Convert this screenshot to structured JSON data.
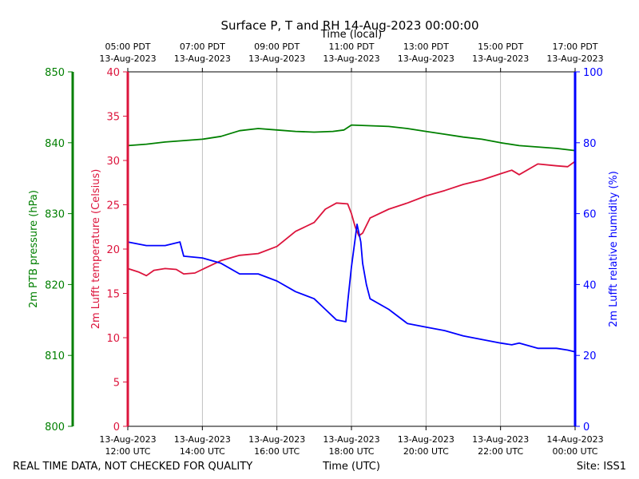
{
  "chart_data": {
    "type": "line",
    "title": "Surface P, T and RH 14-Aug-2023 00:00:00",
    "top_axis_label": "Time (local)",
    "xlabel": "Time (UTC)",
    "footer_left": "REAL TIME DATA, NOT CHECKED FOR QUALITY",
    "footer_right": "Site: ISS1",
    "xlim": [
      "2023-08-13 12:00 UTC",
      "2023-08-14 00:00 UTC"
    ],
    "x_ticks_utc": [
      {
        "date": "13-Aug-2023",
        "time": "12:00 UTC"
      },
      {
        "date": "13-Aug-2023",
        "time": "14:00 UTC"
      },
      {
        "date": "13-Aug-2023",
        "time": "16:00 UTC"
      },
      {
        "date": "13-Aug-2023",
        "time": "18:00 UTC"
      },
      {
        "date": "13-Aug-2023",
        "time": "20:00 UTC"
      },
      {
        "date": "13-Aug-2023",
        "time": "22:00 UTC"
      },
      {
        "date": "14-Aug-2023",
        "time": "00:00 UTC"
      }
    ],
    "x_ticks_local": [
      {
        "time": "05:00 PDT",
        "date": "13-Aug-2023"
      },
      {
        "time": "07:00 PDT",
        "date": "13-Aug-2023"
      },
      {
        "time": "09:00 PDT",
        "date": "13-Aug-2023"
      },
      {
        "time": "11:00 PDT",
        "date": "13-Aug-2023"
      },
      {
        "time": "13:00 PDT",
        "date": "13-Aug-2023"
      },
      {
        "time": "15:00 PDT",
        "date": "13-Aug-2023"
      },
      {
        "time": "17:00 PDT",
        "date": "13-Aug-2023"
      }
    ],
    "grid": "vertical",
    "axes": {
      "pressure": {
        "label": "2m PTB pressure (hPa)",
        "ylim": [
          800,
          850
        ],
        "ticks": [
          "800",
          "810",
          "820",
          "830",
          "840",
          "850"
        ],
        "color": "#007f00"
      },
      "temperature": {
        "label": "2m Lufft temperature (Celsius)",
        "ylim": [
          0,
          40
        ],
        "ticks": [
          "0",
          "5",
          "10",
          "15",
          "20",
          "25",
          "30",
          "35",
          "40"
        ],
        "color": "#dc143c"
      },
      "humidity": {
        "label": "2m Lufft relative humidity (%)",
        "ylim": [
          0,
          100
        ],
        "ticks": [
          "0",
          "20",
          "40",
          "60",
          "80",
          "100"
        ],
        "color": "#0000ff"
      }
    },
    "series": [
      {
        "axis": "pressure",
        "color": "#008000",
        "x_hours_utc": [
          12.0,
          12.5,
          13.0,
          13.5,
          14.0,
          14.5,
          15.0,
          15.5,
          16.0,
          16.5,
          17.0,
          17.5,
          17.8,
          18.0,
          18.5,
          19.0,
          19.5,
          20.0,
          20.5,
          21.0,
          21.5,
          22.0,
          22.5,
          23.0,
          23.5,
          24.0
        ],
        "values": [
          839.6,
          839.8,
          840.1,
          840.3,
          840.5,
          840.9,
          841.7,
          842.0,
          841.8,
          841.6,
          841.5,
          841.6,
          841.8,
          842.5,
          842.4,
          842.3,
          842.0,
          841.6,
          841.2,
          840.8,
          840.5,
          840.0,
          839.6,
          839.4,
          839.2,
          838.9
        ]
      },
      {
        "axis": "temperature",
        "color": "#dc143c",
        "x_hours_utc": [
          12.0,
          12.3,
          12.5,
          12.7,
          13.0,
          13.3,
          13.5,
          13.8,
          14.0,
          14.5,
          15.0,
          15.5,
          16.0,
          16.5,
          17.0,
          17.3,
          17.6,
          17.9,
          18.0,
          18.1,
          18.2,
          18.3,
          18.5,
          19.0,
          19.5,
          20.0,
          20.5,
          21.0,
          21.5,
          22.0,
          22.3,
          22.5,
          23.0,
          23.5,
          23.8,
          24.0
        ],
        "values": [
          17.8,
          17.4,
          17.0,
          17.6,
          17.8,
          17.7,
          17.2,
          17.3,
          17.7,
          18.7,
          19.3,
          19.5,
          20.3,
          22.0,
          23.0,
          24.5,
          25.2,
          25.1,
          24.0,
          22.5,
          21.5,
          21.8,
          23.5,
          24.5,
          25.2,
          26.0,
          26.6,
          27.3,
          27.8,
          28.5,
          28.9,
          28.4,
          29.6,
          29.4,
          29.3,
          29.9
        ]
      },
      {
        "axis": "humidity",
        "color": "#0000ff",
        "x_hours_utc": [
          12.0,
          12.5,
          13.0,
          13.4,
          13.5,
          14.0,
          14.5,
          15.0,
          15.5,
          16.0,
          16.5,
          17.0,
          17.3,
          17.6,
          17.85,
          17.9,
          18.0,
          18.1,
          18.15,
          18.25,
          18.3,
          18.4,
          18.5,
          19.0,
          19.5,
          20.0,
          20.5,
          21.0,
          21.5,
          22.0,
          22.3,
          22.5,
          23.0,
          23.5,
          23.8,
          24.0
        ],
        "values": [
          52.0,
          51.0,
          51.0,
          52.0,
          48.0,
          47.5,
          46.0,
          43.0,
          43.0,
          41.0,
          38.0,
          36.0,
          33.0,
          30.0,
          29.5,
          35.0,
          45.0,
          53.0,
          57.0,
          52.0,
          46.0,
          40.0,
          36.0,
          33.0,
          29.0,
          28.0,
          27.0,
          25.5,
          24.5,
          23.5,
          23.0,
          23.5,
          22.0,
          22.0,
          21.5,
          21.0
        ]
      }
    ]
  }
}
